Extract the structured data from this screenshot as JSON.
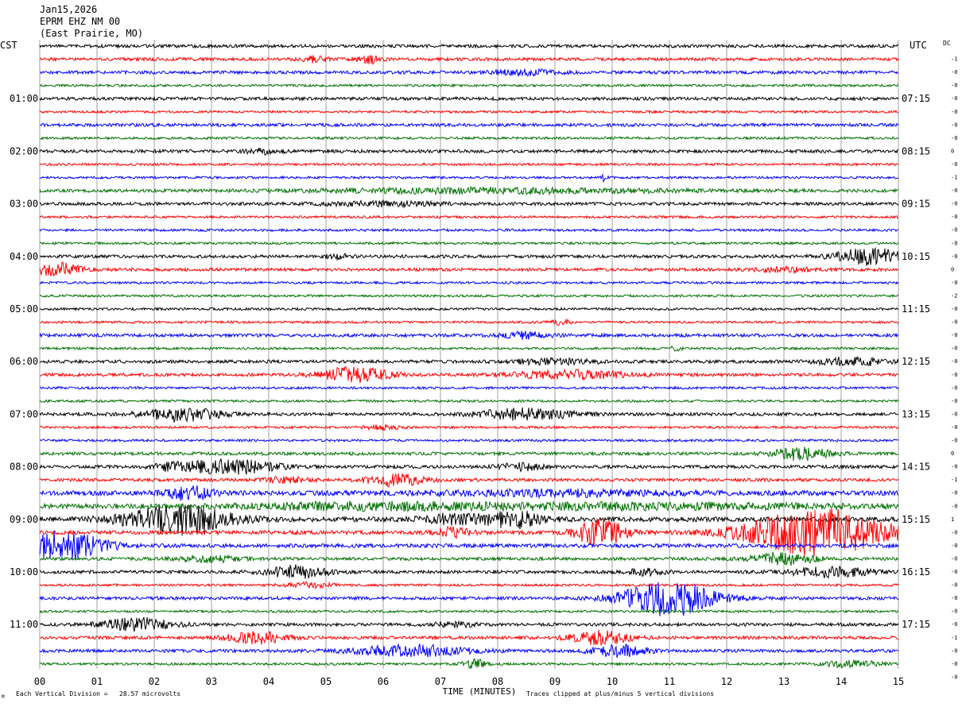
{
  "header": {
    "line1": "Jan15,2026",
    "line2": "EPRM EHZ NM 00",
    "line3": "(East Prairie, MO)"
  },
  "left_zone_label": "CST",
  "right_zone_label": "UTC",
  "dc_label": "DC",
  "footer": {
    "scale_note": "Each Vertical Division =   28.57 microvolts",
    "clip_note": "Traces clipped at plus/minus 5 vertical divisions",
    "small_mark": "M"
  },
  "colors": {
    "trace_cycle": [
      "#000000",
      "#ff0000",
      "#0000ff",
      "#007000"
    ],
    "grid": "#a0a0a0",
    "background": "#ffffff"
  },
  "chart_data": {
    "type": "line",
    "title": "",
    "xlabel": "TIME (MINUTES)",
    "ylabel": "",
    "xlim": [
      0,
      15
    ],
    "x_ticks": [
      "00",
      "01",
      "02",
      "03",
      "04",
      "05",
      "06",
      "07",
      "08",
      "09",
      "10",
      "11",
      "12",
      "13",
      "14",
      "15"
    ],
    "trace_count": 48,
    "trace_minutes_each": 15,
    "left_hour_labels": [
      "01:00",
      "02:00",
      "03:00",
      "04:00",
      "05:00",
      "06:00",
      "07:00",
      "08:00",
      "09:00",
      "10:00",
      "11:00"
    ],
    "right_hour_labels": [
      "07:15",
      "08:15",
      "09:15",
      "10:15",
      "11:15",
      "12:15",
      "13:15",
      "14:15",
      "15:15",
      "16:15",
      "17:15"
    ],
    "dc_offsets": [
      "-1",
      "-0",
      "-0",
      "-0",
      "-0",
      "-0",
      "-0",
      "0",
      "-0",
      "-1",
      "-0",
      "-0",
      "-0",
      "-0",
      "-0",
      "-0",
      "0",
      "-0",
      "-2",
      "-0",
      "-0",
      "-0",
      "-0",
      "-0",
      "-0",
      "-0",
      "-0",
      "-0",
      "-0",
      "-0",
      "0",
      "-0",
      "-1",
      "-0",
      "-0",
      "1",
      "-0",
      "-0",
      "-0",
      "-0",
      "-0",
      "-0",
      "-0",
      "-0",
      "-1",
      "-0",
      "-0",
      "-0"
    ],
    "series": [
      {
        "trace": 0,
        "color_index": 0,
        "amplitude": 2,
        "events": []
      },
      {
        "trace": 1,
        "color_index": 1,
        "amplitude": 2,
        "events": [
          [
            4.8,
            0.2,
            4
          ],
          [
            5.75,
            0.2,
            5
          ]
        ]
      },
      {
        "trace": 2,
        "color_index": 2,
        "amplitude": 2,
        "events": [
          [
            8.5,
            0.6,
            3
          ]
        ]
      },
      {
        "trace": 3,
        "color_index": 3,
        "amplitude": 1.5,
        "events": []
      },
      {
        "trace": 4,
        "color_index": 0,
        "amplitude": 2,
        "events": []
      },
      {
        "trace": 5,
        "color_index": 1,
        "amplitude": 1.5,
        "events": []
      },
      {
        "trace": 6,
        "color_index": 2,
        "amplitude": 2,
        "events": []
      },
      {
        "trace": 7,
        "color_index": 3,
        "amplitude": 1.5,
        "events": []
      },
      {
        "trace": 8,
        "color_index": 0,
        "amplitude": 2,
        "events": [
          [
            3.9,
            0.3,
            3
          ]
        ]
      },
      {
        "trace": 9,
        "color_index": 1,
        "amplitude": 1.5,
        "events": []
      },
      {
        "trace": 10,
        "color_index": 2,
        "amplitude": 1.5,
        "events": [
          [
            9.85,
            0.05,
            6
          ]
        ]
      },
      {
        "trace": 11,
        "color_index": 3,
        "amplitude": 2,
        "events": [
          [
            8.0,
            3.0,
            3
          ]
        ]
      },
      {
        "trace": 12,
        "color_index": 0,
        "amplitude": 2,
        "events": [
          [
            6.0,
            1.0,
            2.5
          ]
        ]
      },
      {
        "trace": 13,
        "color_index": 1,
        "amplitude": 1.5,
        "events": []
      },
      {
        "trace": 14,
        "color_index": 2,
        "amplitude": 1.5,
        "events": []
      },
      {
        "trace": 15,
        "color_index": 3,
        "amplitude": 1.5,
        "events": []
      },
      {
        "trace": 16,
        "color_index": 0,
        "amplitude": 2,
        "events": [
          [
            14.5,
            0.6,
            10
          ],
          [
            5.2,
            0.2,
            3
          ]
        ]
      },
      {
        "trace": 17,
        "color_index": 1,
        "amplitude": 2,
        "events": [
          [
            0.3,
            0.4,
            9
          ],
          [
            13.0,
            0.5,
            3
          ]
        ]
      },
      {
        "trace": 18,
        "color_index": 2,
        "amplitude": 1.5,
        "events": []
      },
      {
        "trace": 19,
        "color_index": 3,
        "amplitude": 1.5,
        "events": []
      },
      {
        "trace": 20,
        "color_index": 0,
        "amplitude": 1.5,
        "events": []
      },
      {
        "trace": 21,
        "color_index": 1,
        "amplitude": 1.5,
        "events": [
          [
            9.1,
            0.2,
            3
          ]
        ]
      },
      {
        "trace": 22,
        "color_index": 2,
        "amplitude": 2,
        "events": [
          [
            8.5,
            0.4,
            4
          ]
        ]
      },
      {
        "trace": 23,
        "color_index": 3,
        "amplitude": 1.5,
        "events": [
          [
            11.1,
            0.1,
            3
          ]
        ]
      },
      {
        "trace": 24,
        "color_index": 0,
        "amplitude": 2,
        "events": [
          [
            14.2,
            0.6,
            5
          ],
          [
            9.0,
            0.8,
            3
          ]
        ]
      },
      {
        "trace": 25,
        "color_index": 1,
        "amplitude": 2,
        "events": [
          [
            5.5,
            0.6,
            9
          ],
          [
            9.3,
            1.0,
            5
          ]
        ]
      },
      {
        "trace": 26,
        "color_index": 2,
        "amplitude": 1.5,
        "events": []
      },
      {
        "trace": 27,
        "color_index": 3,
        "amplitude": 1.5,
        "events": []
      },
      {
        "trace": 28,
        "color_index": 0,
        "amplitude": 2,
        "events": [
          [
            2.5,
            0.7,
            8
          ],
          [
            8.5,
            0.8,
            7
          ]
        ]
      },
      {
        "trace": 29,
        "color_index": 1,
        "amplitude": 1.5,
        "events": [
          [
            6.0,
            0.3,
            2.5
          ]
        ]
      },
      {
        "trace": 30,
        "color_index": 2,
        "amplitude": 1.5,
        "events": []
      },
      {
        "trace": 31,
        "color_index": 3,
        "amplitude": 2,
        "events": [
          [
            13.3,
            0.5,
            8
          ]
        ]
      },
      {
        "trace": 32,
        "color_index": 0,
        "amplitude": 2,
        "events": [
          [
            3.3,
            0.8,
            9
          ],
          [
            2.3,
            0.3,
            4
          ],
          [
            8.4,
            0.4,
            4
          ]
        ]
      },
      {
        "trace": 33,
        "color_index": 1,
        "amplitude": 2,
        "events": [
          [
            6.2,
            0.5,
            7
          ],
          [
            4.3,
            0.4,
            3
          ]
        ]
      },
      {
        "trace": 34,
        "color_index": 2,
        "amplitude": 3,
        "events": [
          [
            2.6,
            0.4,
            8
          ],
          [
            9.0,
            2.0,
            3
          ]
        ]
      },
      {
        "trace": 35,
        "color_index": 3,
        "amplitude": 3,
        "events": [
          [
            5.5,
            2.0,
            3
          ],
          [
            10.0,
            4.0,
            3
          ]
        ]
      },
      {
        "trace": 36,
        "color_index": 0,
        "amplitude": 3,
        "events": [
          [
            2.4,
            0.9,
            18
          ],
          [
            8.3,
            0.5,
            10
          ],
          [
            7.2,
            0.5,
            6
          ]
        ]
      },
      {
        "trace": 37,
        "color_index": 1,
        "amplitude": 2.5,
        "events": [
          [
            9.8,
            0.4,
            18
          ],
          [
            13.6,
            1.2,
            30
          ],
          [
            7.2,
            0.3,
            6
          ]
        ]
      },
      {
        "trace": 38,
        "color_index": 2,
        "amplitude": 2.5,
        "events": [
          [
            0.4,
            0.7,
            18
          ]
        ]
      },
      {
        "trace": 39,
        "color_index": 3,
        "amplitude": 2,
        "events": [
          [
            13.0,
            0.5,
            8
          ],
          [
            3.0,
            0.5,
            4
          ]
        ]
      },
      {
        "trace": 40,
        "color_index": 0,
        "amplitude": 2,
        "events": [
          [
            4.5,
            0.5,
            8
          ],
          [
            13.8,
            0.7,
            6
          ],
          [
            10.6,
            0.3,
            4
          ]
        ]
      },
      {
        "trace": 41,
        "color_index": 1,
        "amplitude": 1.5,
        "events": [
          [
            4.7,
            0.4,
            3
          ]
        ]
      },
      {
        "trace": 42,
        "color_index": 2,
        "amplitude": 2,
        "events": [
          [
            11.0,
            0.8,
            22
          ]
        ]
      },
      {
        "trace": 43,
        "color_index": 3,
        "amplitude": 1.5,
        "events": []
      },
      {
        "trace": 44,
        "color_index": 0,
        "amplitude": 2,
        "events": [
          [
            1.7,
            0.6,
            8
          ],
          [
            7.2,
            0.4,
            3
          ]
        ]
      },
      {
        "trace": 45,
        "color_index": 1,
        "amplitude": 2,
        "events": [
          [
            3.8,
            0.5,
            7
          ],
          [
            9.8,
            0.5,
            8
          ]
        ]
      },
      {
        "trace": 46,
        "color_index": 2,
        "amplitude": 2,
        "events": [
          [
            6.5,
            1.0,
            7
          ],
          [
            10.1,
            0.5,
            7
          ]
        ]
      },
      {
        "trace": 47,
        "color_index": 3,
        "amplitude": 1.5,
        "events": [
          [
            7.6,
            0.2,
            6
          ],
          [
            14.2,
            0.5,
            4
          ]
        ]
      }
    ]
  }
}
